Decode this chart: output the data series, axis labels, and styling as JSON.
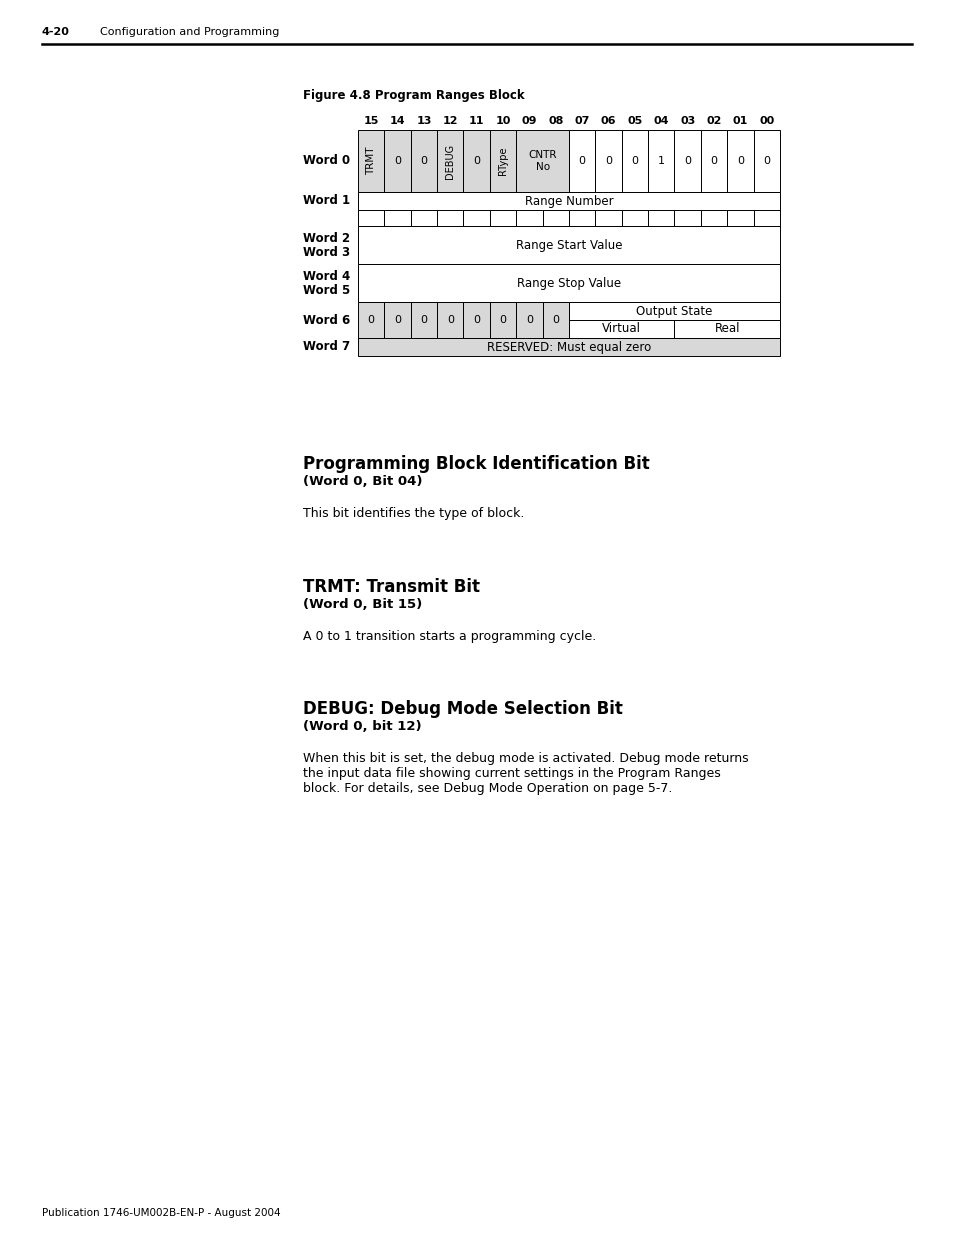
{
  "page_header_bold": "4-20",
  "page_header_text": "Configuration and Programming",
  "figure_title": "Figure 4.8 Program Ranges Block",
  "bit_labels": [
    "15",
    "14",
    "13",
    "12",
    "11",
    "10",
    "09",
    "08",
    "07",
    "06",
    "05",
    "04",
    "03",
    "02",
    "01",
    "00"
  ],
  "section1_title": "Programming Block Identification Bit",
  "section1_subtitle": "(Word 0, Bit 04)",
  "section1_body": "This bit identifies the type of block.",
  "section2_title": "TRMT: Transmit Bit",
  "section2_subtitle": "(Word 0, Bit 15)",
  "section2_body": "A 0 to 1 transition starts a programming cycle.",
  "section3_title": "DEBUG: Debug Mode Selection Bit",
  "section3_subtitle": "(Word 0, bit 12)",
  "section3_body": "When this bit is set, the debug mode is activated. Debug mode returns\nthe input data file showing current settings in the Program Ranges\nblock. For details, see Debug Mode Operation on page 5-7.",
  "footer": "Publication 1746-UM002B-EN-P - August 2004",
  "bg_color": "#ffffff",
  "table_bg": "#d8d8d8",
  "table_white": "#ffffff"
}
